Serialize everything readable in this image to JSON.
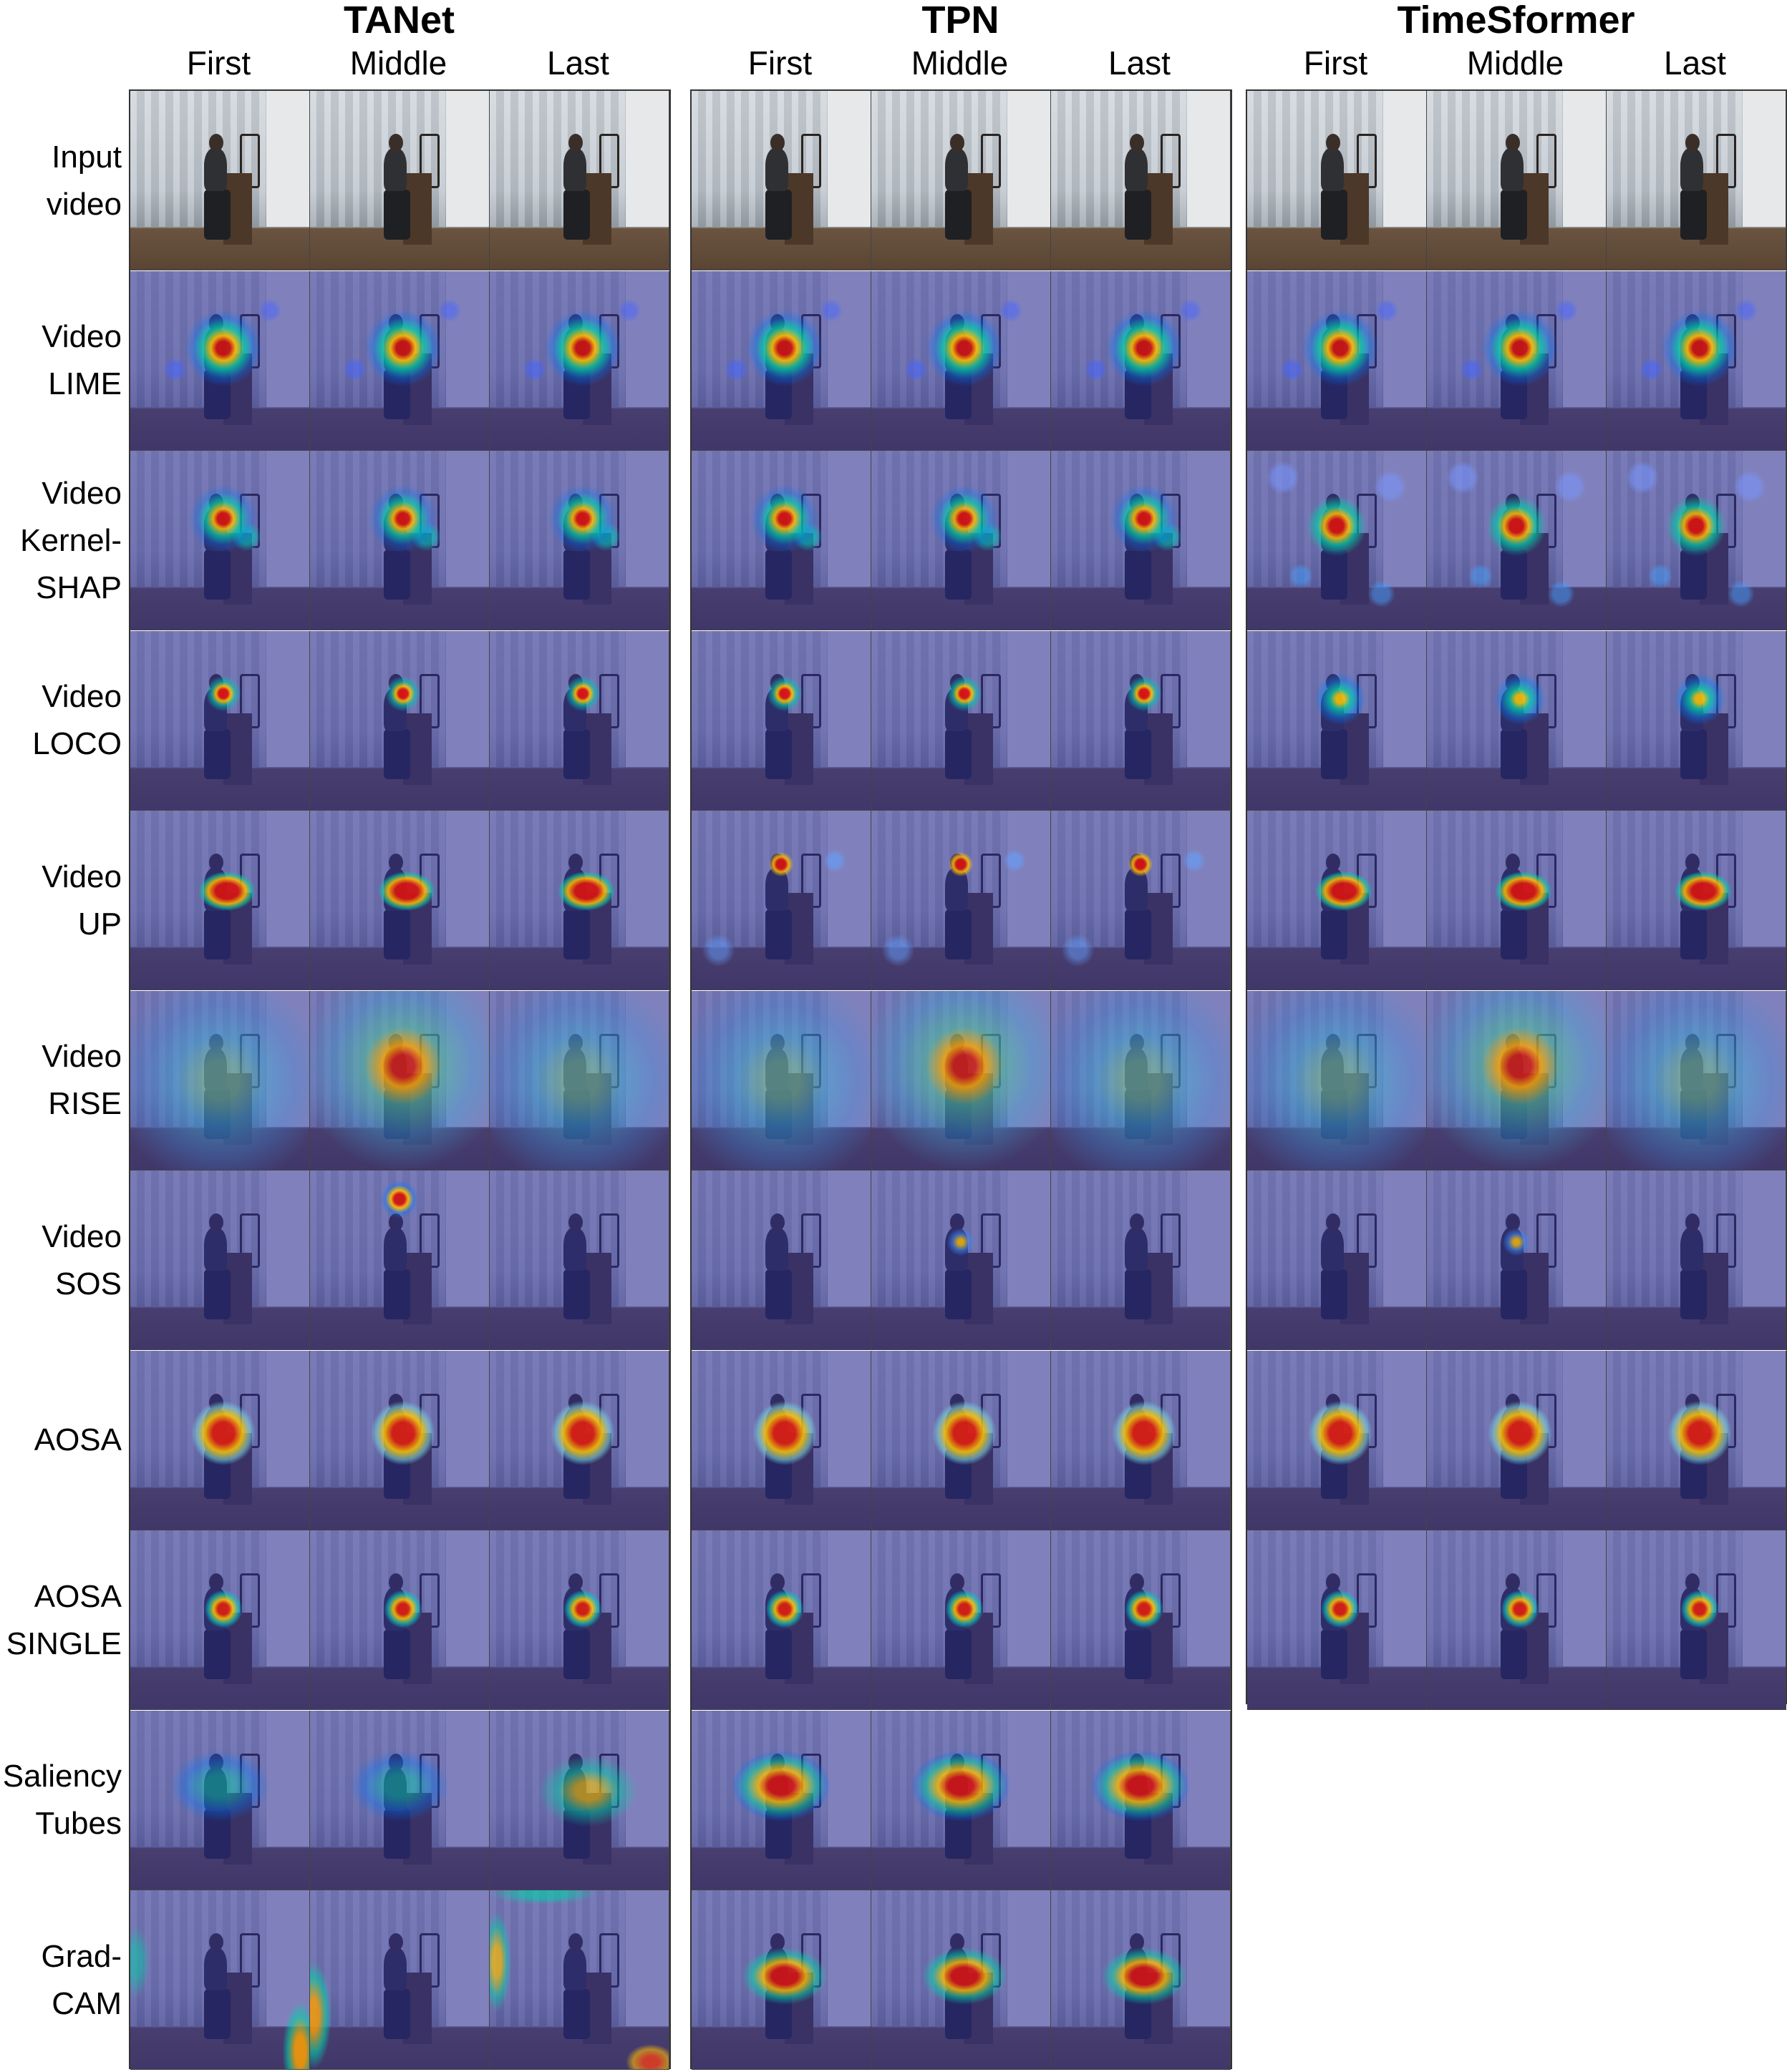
{
  "models": [
    {
      "name": "TANet",
      "frames": [
        "First",
        "Middle",
        "Last"
      ]
    },
    {
      "name": "TPN",
      "frames": [
        "First",
        "Middle",
        "Last"
      ]
    },
    {
      "name": "TimeSformer",
      "frames": [
        "First",
        "Middle",
        "Last"
      ]
    }
  ],
  "rows": [
    {
      "id": "input",
      "label": [
        "Input",
        "video"
      ]
    },
    {
      "id": "lime",
      "label": [
        "Video",
        "LIME"
      ]
    },
    {
      "id": "shap",
      "label": [
        "Video",
        "Kernel-",
        "SHAP"
      ]
    },
    {
      "id": "loco",
      "label": [
        "Video",
        "LOCO"
      ]
    },
    {
      "id": "up",
      "label": [
        "Video",
        "UP"
      ]
    },
    {
      "id": "rise",
      "label": [
        "Video",
        "RISE"
      ]
    },
    {
      "id": "sos",
      "label": [
        "Video",
        "SOS"
      ]
    },
    {
      "id": "aosa",
      "label": [
        "AOSA"
      ]
    },
    {
      "id": "aosa_single",
      "label": [
        "AOSA",
        "SINGLE"
      ]
    },
    {
      "id": "saliency_tubes",
      "label": [
        "Saliency",
        "Tubes"
      ]
    },
    {
      "id": "gradcam",
      "label": [
        "Grad-",
        "CAM"
      ]
    }
  ],
  "rows_available": {
    "TANet": 11,
    "TPN": 11,
    "TimeSformer": 9
  }
}
